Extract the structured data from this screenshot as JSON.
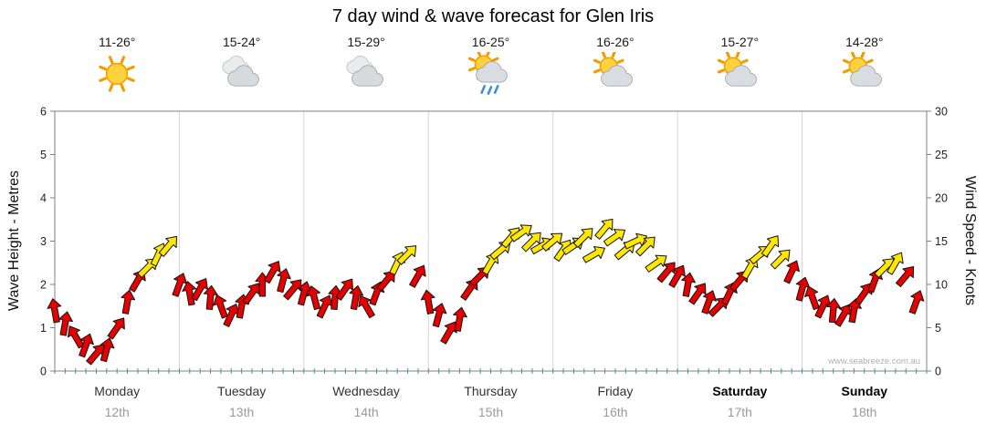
{
  "title": "7 day wind & wave forecast for Glen Iris",
  "watermark": "www.seabreeze.com.au",
  "days": [
    {
      "name": "Monday",
      "date": "12th",
      "temp": "11-26°",
      "icon": "sun",
      "bold": false
    },
    {
      "name": "Tuesday",
      "date": "13th",
      "temp": "15-24°",
      "icon": "cloud",
      "bold": false
    },
    {
      "name": "Wednesday",
      "date": "14th",
      "temp": "15-29°",
      "icon": "cloud",
      "bold": false
    },
    {
      "name": "Thursday",
      "date": "15th",
      "temp": "16-25°",
      "icon": "sun-rain",
      "bold": false
    },
    {
      "name": "Friday",
      "date": "16th",
      "temp": "16-26°",
      "icon": "sun-cloud",
      "bold": false
    },
    {
      "name": "Saturday",
      "date": "17th",
      "temp": "15-27°",
      "icon": "sun-cloud",
      "bold": true
    },
    {
      "name": "Sunday",
      "date": "18th",
      "temp": "14-28°",
      "icon": "sun-cloud",
      "bold": true
    }
  ],
  "chart_data": {
    "type": "wind-arrow-series",
    "title": "7 day wind & wave forecast for Glen Iris",
    "x_days": [
      "Monday 12th",
      "Tuesday 13th",
      "Wednesday 14th",
      "Thursday 15th",
      "Friday 16th",
      "Saturday 17th",
      "Sunday 18th"
    ],
    "left_axis": {
      "label": "Wave Height - Metres",
      "min": 0,
      "max": 6,
      "ticks": [
        0,
        1,
        2,
        3,
        4,
        5,
        6
      ]
    },
    "right_axis": {
      "label": "Wind Speed - Knots",
      "min": 0,
      "max": 30,
      "ticks": [
        0,
        5,
        10,
        15,
        20,
        25,
        30
      ]
    },
    "colors": {
      "low": "#e60000",
      "high": "#ffe800",
      "outline": "#141414",
      "threshold_knots": 12
    },
    "points_format": [
      "hour_0_to_168",
      "wind_speed_knots",
      "direction_deg"
    ],
    "points": [
      [
        0,
        7,
        350
      ],
      [
        2,
        5.5,
        10
      ],
      [
        4,
        4,
        330
      ],
      [
        6,
        3,
        20
      ],
      [
        8,
        2,
        40
      ],
      [
        10,
        2.5,
        15
      ],
      [
        12,
        5,
        35
      ],
      [
        14,
        8,
        10
      ],
      [
        16,
        10.5,
        30
      ],
      [
        18,
        12,
        45
      ],
      [
        20,
        13.5,
        25
      ],
      [
        22,
        14.5,
        40
      ],
      [
        24,
        10,
        20
      ],
      [
        26,
        9,
        350
      ],
      [
        28,
        9.5,
        30
      ],
      [
        30,
        8.5,
        5
      ],
      [
        32,
        7.5,
        340
      ],
      [
        34,
        6.5,
        25
      ],
      [
        36,
        7.5,
        10
      ],
      [
        38,
        9,
        35
      ],
      [
        40,
        10,
        0
      ],
      [
        42,
        11.5,
        30
      ],
      [
        44,
        10.5,
        15
      ],
      [
        46,
        9.5,
        40
      ],
      [
        48,
        9,
        15
      ],
      [
        50,
        8.5,
        345
      ],
      [
        52,
        7.5,
        25
      ],
      [
        54,
        8.5,
        5
      ],
      [
        56,
        9.5,
        35
      ],
      [
        58,
        8.5,
        10
      ],
      [
        60,
        7.5,
        330
      ],
      [
        62,
        9,
        20
      ],
      [
        64,
        10.5,
        40
      ],
      [
        66,
        12.5,
        25
      ],
      [
        68,
        13.5,
        45
      ],
      [
        70,
        11,
        30
      ],
      [
        72,
        8,
        350
      ],
      [
        74,
        6.5,
        15
      ],
      [
        76,
        4.5,
        30
      ],
      [
        78,
        6,
        10
      ],
      [
        80,
        9.5,
        35
      ],
      [
        82,
        11,
        45
      ],
      [
        84,
        12.5,
        30
      ],
      [
        86,
        14,
        50
      ],
      [
        88,
        15.5,
        40
      ],
      [
        90,
        16,
        55
      ],
      [
        92,
        15,
        45
      ],
      [
        94,
        14.5,
        60
      ],
      [
        96,
        15,
        50
      ],
      [
        98,
        14,
        35
      ],
      [
        100,
        14.5,
        55
      ],
      [
        102,
        15.5,
        45
      ],
      [
        104,
        13.5,
        60
      ],
      [
        106,
        16.5,
        40
      ],
      [
        108,
        15.5,
        55
      ],
      [
        110,
        14,
        50
      ],
      [
        112,
        15,
        65
      ],
      [
        114,
        14.5,
        45
      ],
      [
        116,
        12.5,
        55
      ],
      [
        118,
        11.5,
        40
      ],
      [
        120,
        11,
        30
      ],
      [
        122,
        10,
        10
      ],
      [
        124,
        9,
        35
      ],
      [
        126,
        8,
        20
      ],
      [
        128,
        7.5,
        45
      ],
      [
        130,
        9,
        25
      ],
      [
        132,
        10.5,
        40
      ],
      [
        134,
        12,
        30
      ],
      [
        136,
        13.5,
        50
      ],
      [
        138,
        14.5,
        35
      ],
      [
        140,
        13,
        45
      ],
      [
        142,
        11.5,
        25
      ],
      [
        144,
        9.5,
        15
      ],
      [
        146,
        8.5,
        340
      ],
      [
        148,
        7.5,
        25
      ],
      [
        150,
        7,
        5
      ],
      [
        152,
        6.5,
        30
      ],
      [
        154,
        7,
        10
      ],
      [
        156,
        9,
        35
      ],
      [
        158,
        10.5,
        20
      ],
      [
        160,
        12,
        45
      ],
      [
        162,
        12.5,
        30
      ],
      [
        164,
        11,
        40
      ],
      [
        166,
        8,
        20
      ]
    ]
  }
}
